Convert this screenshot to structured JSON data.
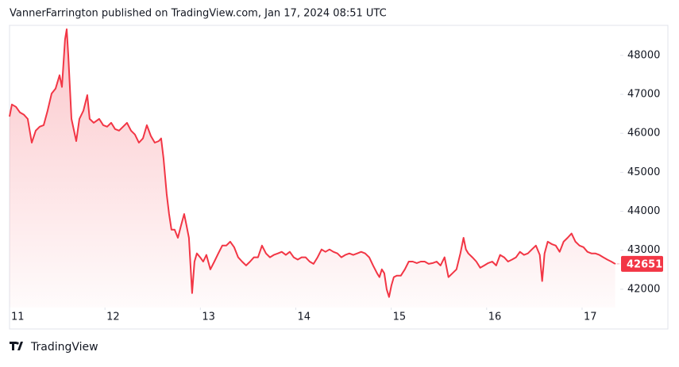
{
  "header": {
    "text": "VannerFarrington published on TradingView.com, Jan 17, 2024 08:51 UTC"
  },
  "footer": {
    "brand": "TradingView"
  },
  "chart_data": {
    "type": "area",
    "x": [
      11.0,
      11.025,
      11.067,
      11.108,
      11.15,
      11.191,
      11.233,
      11.275,
      11.316,
      11.358,
      11.399,
      11.441,
      11.483,
      11.524,
      11.549,
      11.582,
      11.599,
      11.616,
      11.649,
      11.699,
      11.732,
      11.774,
      11.815,
      11.84,
      11.882,
      11.94,
      11.982,
      12.023,
      12.065,
      12.106,
      12.148,
      12.19,
      12.231,
      12.273,
      12.314,
      12.356,
      12.398,
      12.439,
      12.481,
      12.522,
      12.564,
      12.589,
      12.614,
      12.647,
      12.672,
      12.697,
      12.73,
      12.764,
      12.797,
      12.83,
      12.855,
      12.88,
      12.897,
      12.913,
      12.938,
      12.963,
      12.997,
      13.03,
      13.063,
      13.105,
      13.146,
      13.188,
      13.23,
      13.271,
      13.313,
      13.354,
      13.396,
      13.437,
      13.479,
      13.521,
      13.562,
      13.604,
      13.646,
      13.687,
      13.729,
      13.77,
      13.812,
      13.853,
      13.895,
      13.937,
      13.978,
      14.02,
      14.061,
      14.103,
      14.145,
      14.186,
      14.228,
      14.27,
      14.311,
      14.353,
      14.394,
      14.436,
      14.477,
      14.519,
      14.561,
      14.602,
      14.644,
      14.685,
      14.727,
      14.769,
      14.81,
      14.852,
      14.877,
      14.902,
      14.927,
      14.952,
      14.977,
      15.002,
      15.027,
      15.06,
      15.101,
      15.143,
      15.184,
      15.226,
      15.268,
      15.309,
      15.351,
      15.393,
      15.434,
      15.476,
      15.517,
      15.559,
      15.6,
      15.642,
      15.684,
      15.725,
      15.758,
      15.783,
      15.808,
      15.85,
      15.892,
      15.933,
      15.975,
      16.016,
      16.058,
      16.1,
      16.141,
      16.183,
      16.224,
      16.266,
      16.308,
      16.349,
      16.391,
      16.432,
      16.474,
      16.516,
      16.557,
      16.582,
      16.607,
      16.64,
      16.682,
      16.724,
      16.765,
      16.807,
      16.848,
      16.89,
      16.931,
      16.973,
      17.015,
      17.056,
      17.098,
      17.139,
      17.181,
      17.223,
      17.264,
      17.306,
      17.347
    ],
    "series": [
      {
        "color": "#f23645",
        "values": [
          46430,
          46740,
          46680,
          46540,
          46480,
          46370,
          45760,
          46070,
          46170,
          46210,
          46580,
          47020,
          47150,
          47490,
          47190,
          48410,
          48670,
          48000,
          46370,
          45800,
          46370,
          46580,
          46980,
          46370,
          46270,
          46370,
          46210,
          46170,
          46270,
          46110,
          46070,
          46170,
          46270,
          46070,
          45970,
          45760,
          45870,
          46210,
          45930,
          45760,
          45800,
          45870,
          45360,
          44440,
          43930,
          43530,
          43530,
          43320,
          43630,
          43930,
          43630,
          43320,
          42610,
          41900,
          42710,
          42920,
          42820,
          42710,
          42880,
          42510,
          42710,
          42920,
          43120,
          43120,
          43220,
          43080,
          42820,
          42710,
          42610,
          42710,
          42820,
          42820,
          43120,
          42920,
          42820,
          42880,
          42920,
          42960,
          42880,
          42960,
          42820,
          42760,
          42820,
          42820,
          42710,
          42650,
          42820,
          43020,
          42960,
          43020,
          42960,
          42920,
          42820,
          42880,
          42920,
          42880,
          42920,
          42960,
          42920,
          42820,
          42610,
          42410,
          42310,
          42510,
          42410,
          42000,
          41800,
          42100,
          42310,
          42350,
          42350,
          42510,
          42710,
          42710,
          42670,
          42710,
          42710,
          42650,
          42670,
          42710,
          42610,
          42820,
          42310,
          42410,
          42510,
          42920,
          43320,
          43020,
          42920,
          42820,
          42710,
          42550,
          42610,
          42670,
          42710,
          42610,
          42880,
          42820,
          42710,
          42760,
          42820,
          42960,
          42880,
          42920,
          43020,
          43120,
          42880,
          42210,
          42920,
          43220,
          43160,
          43120,
          42960,
          43220,
          43320,
          43430,
          43220,
          43120,
          43080,
          42960,
          42920,
          42920,
          42880,
          42820,
          42760,
          42710,
          42651
        ]
      }
    ],
    "xlim": [
      11,
      17.4
    ],
    "xticks": [
      11,
      12,
      13,
      14,
      15,
      16,
      17
    ],
    "ylim": [
      41530,
      48770
    ],
    "yticks": [
      42000,
      43000,
      44000,
      45000,
      46000,
      47000,
      48000
    ],
    "grid": false
  }
}
